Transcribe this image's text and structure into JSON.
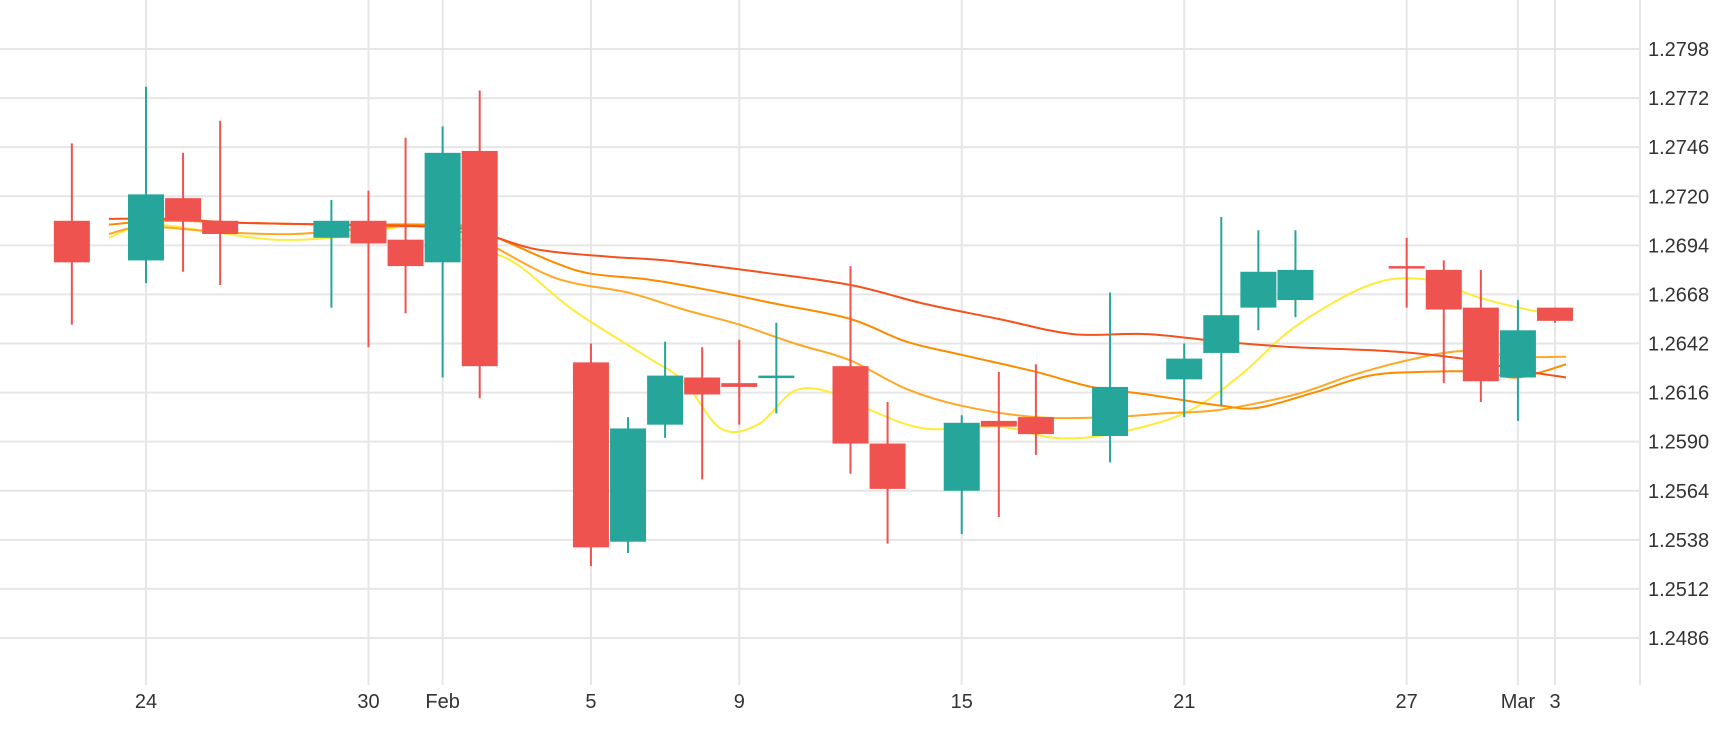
{
  "chart_data": {
    "type": "candlestick",
    "title": "",
    "xlabel": "",
    "ylabel": "",
    "ylim": [
      1.246,
      1.2824
    ],
    "grid": true,
    "y_ticks": [
      "1.2486",
      "1.2512",
      "1.2538",
      "1.2564",
      "1.2590",
      "1.2616",
      "1.2642",
      "1.2668",
      "1.2694",
      "1.2720",
      "1.2746",
      "1.2772",
      "1.2798"
    ],
    "x_ticks": [
      {
        "label": "24",
        "day": 24
      },
      {
        "label": "30",
        "day": 30
      },
      {
        "label": "Feb",
        "day": 32
      },
      {
        "label": "5",
        "day": 36
      },
      {
        "label": "9",
        "day": 40
      },
      {
        "label": "15",
        "day": 46
      },
      {
        "label": "21",
        "day": 52
      },
      {
        "label": "27",
        "day": 58
      },
      {
        "label": "Mar",
        "day": 61
      },
      {
        "label": "3",
        "day": 62
      }
    ],
    "colors": {
      "up": "#26a69a",
      "down": "#ef5350",
      "grid": "#e6e6e6",
      "ma_fast": "#ffeb3b",
      "ma_mid": "#ffa726",
      "ma_slow1": "#fb8c00",
      "ma_slow2": "#f4511e"
    },
    "candles": [
      {
        "day": 22,
        "open": 1.2707,
        "high": 1.2748,
        "low": 1.2652,
        "close": 1.2685
      },
      {
        "day": 24,
        "open": 1.2686,
        "high": 1.2778,
        "low": 1.2674,
        "close": 1.2721
      },
      {
        "day": 25,
        "open": 1.2719,
        "high": 1.2743,
        "low": 1.268,
        "close": 1.2707
      },
      {
        "day": 26,
        "open": 1.2707,
        "high": 1.276,
        "low": 1.2673,
        "close": 1.27
      },
      {
        "day": 29,
        "open": 1.2698,
        "high": 1.2718,
        "low": 1.2661,
        "close": 1.2707
      },
      {
        "day": 30,
        "open": 1.2707,
        "high": 1.2723,
        "low": 1.264,
        "close": 1.2695
      },
      {
        "day": 31,
        "open": 1.2697,
        "high": 1.2751,
        "low": 1.2658,
        "close": 1.2683
      },
      {
        "day": 32,
        "open": 1.2685,
        "high": 1.2757,
        "low": 1.2624,
        "close": 1.2743
      },
      {
        "day": 33,
        "open": 1.2744,
        "high": 1.2776,
        "low": 1.2613,
        "close": 1.263
      },
      {
        "day": 36,
        "open": 1.2632,
        "high": 1.2642,
        "low": 1.2524,
        "close": 1.2534
      },
      {
        "day": 37,
        "open": 1.2537,
        "high": 1.2603,
        "low": 1.2531,
        "close": 1.2597
      },
      {
        "day": 38,
        "open": 1.2599,
        "high": 1.2643,
        "low": 1.2592,
        "close": 1.2625
      },
      {
        "day": 39,
        "open": 1.2624,
        "high": 1.264,
        "low": 1.257,
        "close": 1.2615
      },
      {
        "day": 40,
        "open": 1.2621,
        "high": 1.2644,
        "low": 1.2599,
        "close": 1.2619
      },
      {
        "day": 41,
        "open": 1.2624,
        "high": 1.2653,
        "low": 1.2605,
        "close": 1.2625
      },
      {
        "day": 43,
        "open": 1.263,
        "high": 1.2683,
        "low": 1.2573,
        "close": 1.2589
      },
      {
        "day": 44,
        "open": 1.2589,
        "high": 1.2611,
        "low": 1.2536,
        "close": 1.2565
      },
      {
        "day": 46,
        "open": 1.2564,
        "high": 1.2604,
        "low": 1.2541,
        "close": 1.26
      },
      {
        "day": 47,
        "open": 1.2601,
        "high": 1.2627,
        "low": 1.255,
        "close": 1.2598
      },
      {
        "day": 48,
        "open": 1.2603,
        "high": 1.2631,
        "low": 1.2583,
        "close": 1.2594
      },
      {
        "day": 50,
        "open": 1.2593,
        "high": 1.2669,
        "low": 1.2579,
        "close": 1.2619
      },
      {
        "day": 52,
        "open": 1.2623,
        "high": 1.2642,
        "low": 1.2603,
        "close": 1.2634
      },
      {
        "day": 53,
        "open": 1.2637,
        "high": 1.2709,
        "low": 1.2609,
        "close": 1.2657
      },
      {
        "day": 54,
        "open": 1.2661,
        "high": 1.2702,
        "low": 1.2649,
        "close": 1.268
      },
      {
        "day": 55,
        "open": 1.2665,
        "high": 1.2702,
        "low": 1.2656,
        "close": 1.2681
      },
      {
        "day": 58,
        "open": 1.2683,
        "high": 1.2698,
        "low": 1.2661,
        "close": 1.2682
      },
      {
        "day": 59,
        "open": 1.2681,
        "high": 1.2686,
        "low": 1.2621,
        "close": 1.266
      },
      {
        "day": 60,
        "open": 1.2661,
        "high": 1.2681,
        "low": 1.2611,
        "close": 1.2622
      },
      {
        "day": 61,
        "open": 1.2624,
        "high": 1.2665,
        "low": 1.2601,
        "close": 1.2649
      },
      {
        "day": 62,
        "open": 1.2661,
        "high": 1.2661,
        "low": 1.2653,
        "close": 1.2654
      }
    ],
    "series": [
      {
        "key": "ma_fast",
        "color": "#ffeb3b",
        "points": [
          [
            23.0,
            1.2698
          ],
          [
            24.0,
            1.2705
          ],
          [
            25.5,
            1.2702
          ],
          [
            27.5,
            1.2697
          ],
          [
            29.5,
            1.2699
          ],
          [
            31.5,
            1.2705
          ],
          [
            32.8,
            1.2694
          ],
          [
            34.0,
            1.2684
          ],
          [
            35.5,
            1.266
          ],
          [
            37.5,
            1.2635
          ],
          [
            38.5,
            1.2622
          ],
          [
            39.5,
            1.2597
          ],
          [
            40.5,
            1.2599
          ],
          [
            41.5,
            1.2617
          ],
          [
            42.5,
            1.2616
          ],
          [
            43.5,
            1.2607
          ],
          [
            45.0,
            1.2597
          ],
          [
            47.0,
            1.2598
          ],
          [
            48.5,
            1.2592
          ],
          [
            50.0,
            1.2594
          ],
          [
            52.0,
            1.2605
          ],
          [
            53.5,
            1.2625
          ],
          [
            55.0,
            1.2651
          ],
          [
            57.0,
            1.2673
          ],
          [
            58.5,
            1.2676
          ],
          [
            60.0,
            1.2666
          ],
          [
            61.5,
            1.2659
          ],
          [
            62.3,
            1.2657
          ]
        ]
      },
      {
        "key": "ma_mid",
        "color": "#ffa726",
        "points": [
          [
            23.0,
            1.27
          ],
          [
            24.0,
            1.2704
          ],
          [
            26.0,
            1.2701
          ],
          [
            28.0,
            1.27
          ],
          [
            30.0,
            1.2703
          ],
          [
            31.5,
            1.2704
          ],
          [
            32.8,
            1.2699
          ],
          [
            35.0,
            1.2677
          ],
          [
            37.0,
            1.2669
          ],
          [
            38.5,
            1.266
          ],
          [
            40.0,
            1.2652
          ],
          [
            41.5,
            1.2642
          ],
          [
            43.0,
            1.2633
          ],
          [
            44.5,
            1.2618
          ],
          [
            46.0,
            1.2609
          ],
          [
            48.0,
            1.2603
          ],
          [
            50.0,
            1.2603
          ],
          [
            51.5,
            1.2605
          ],
          [
            53.0,
            1.2607
          ],
          [
            55.0,
            1.2615
          ],
          [
            56.5,
            1.2625
          ],
          [
            58.0,
            1.2633
          ],
          [
            59.5,
            1.2638
          ],
          [
            61.0,
            1.2635
          ],
          [
            62.3,
            1.2635
          ]
        ]
      },
      {
        "key": "ma_slow1",
        "color": "#fb8c00",
        "points": [
          [
            23.0,
            1.2705
          ],
          [
            24.5,
            1.2707
          ],
          [
            26.5,
            1.2706
          ],
          [
            29.0,
            1.2705
          ],
          [
            31.5,
            1.2705
          ],
          [
            32.8,
            1.2703
          ],
          [
            35.0,
            1.2685
          ],
          [
            36.0,
            1.2679
          ],
          [
            37.5,
            1.2676
          ],
          [
            39.0,
            1.2671
          ],
          [
            41.0,
            1.2663
          ],
          [
            43.0,
            1.2655
          ],
          [
            44.5,
            1.2643
          ],
          [
            46.0,
            1.2636
          ],
          [
            48.0,
            1.2627
          ],
          [
            49.5,
            1.2619
          ],
          [
            51.0,
            1.2615
          ],
          [
            53.0,
            1.2609
          ],
          [
            54.0,
            1.2608
          ],
          [
            55.5,
            1.2616
          ],
          [
            57.0,
            1.2625
          ],
          [
            58.5,
            1.2627
          ],
          [
            60.0,
            1.2627
          ],
          [
            61.0,
            1.2624
          ],
          [
            62.3,
            1.2631
          ]
        ]
      },
      {
        "key": "ma_slow2",
        "color": "#f4511e",
        "points": [
          [
            23.0,
            1.2708
          ],
          [
            24.5,
            1.2708
          ],
          [
            26.5,
            1.2706
          ],
          [
            29.0,
            1.2705
          ],
          [
            31.5,
            1.2704
          ],
          [
            32.8,
            1.2702
          ],
          [
            34.5,
            1.2692
          ],
          [
            36.5,
            1.2688
          ],
          [
            38.0,
            1.2686
          ],
          [
            40.5,
            1.268
          ],
          [
            43.0,
            1.2673
          ],
          [
            45.0,
            1.2663
          ],
          [
            47.0,
            1.2655
          ],
          [
            49.0,
            1.2647
          ],
          [
            51.0,
            1.2647
          ],
          [
            53.0,
            1.2643
          ],
          [
            55.0,
            1.264
          ],
          [
            57.5,
            1.2638
          ],
          [
            59.5,
            1.2634
          ],
          [
            61.0,
            1.2628
          ],
          [
            62.3,
            1.2624
          ]
        ]
      }
    ]
  }
}
